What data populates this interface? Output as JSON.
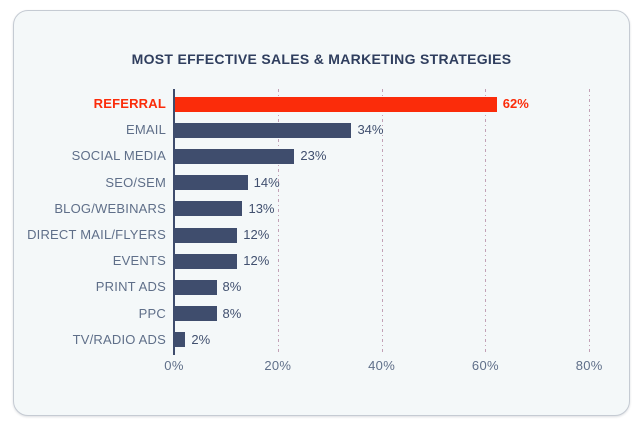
{
  "chart_data": {
    "type": "bar",
    "orientation": "horizontal",
    "title": "MOST EFFECTIVE SALES & MARKETING STRATEGIES",
    "categories": [
      "REFERRAL",
      "EMAIL",
      "SOCIAL MEDIA",
      "SEO/SEM",
      "BLOG/WEBINARS",
      "DIRECT MAIL/FLYERS",
      "EVENTS",
      "PRINT ADS",
      "PPC",
      "TV/RADIO ADS"
    ],
    "values": [
      62,
      34,
      23,
      14,
      13,
      12,
      12,
      8,
      8,
      2
    ],
    "value_labels": [
      "62%",
      "34%",
      "23%",
      "14%",
      "13%",
      "12%",
      "12%",
      "8%",
      "8%",
      "2%"
    ],
    "highlight_index": 0,
    "xlabel": "",
    "ylabel": "",
    "xlim": [
      0,
      80
    ],
    "x_ticks": [
      "0%",
      "20%",
      "40%",
      "60%",
      "80%"
    ],
    "x_tick_values": [
      0,
      20,
      40,
      60,
      80
    ],
    "grid": "vertical dash-dot lines at ticks, drawn behind bars",
    "legend": "none",
    "colors": {
      "bar": "#3f4d6d",
      "highlight_bar": "#fb2c0a",
      "category_label": "#5f6f89",
      "highlight_label": "#fb2c0a",
      "value_label": "#41506f",
      "title": "#2f3e5e",
      "gridline": "#c2a0b5",
      "axis": "#3e4c6d",
      "card_background": "#f4f8f9",
      "card_border": "#c5cbd3",
      "page_background": "#ffffff",
      "tick_label": "#5f6f89"
    }
  }
}
